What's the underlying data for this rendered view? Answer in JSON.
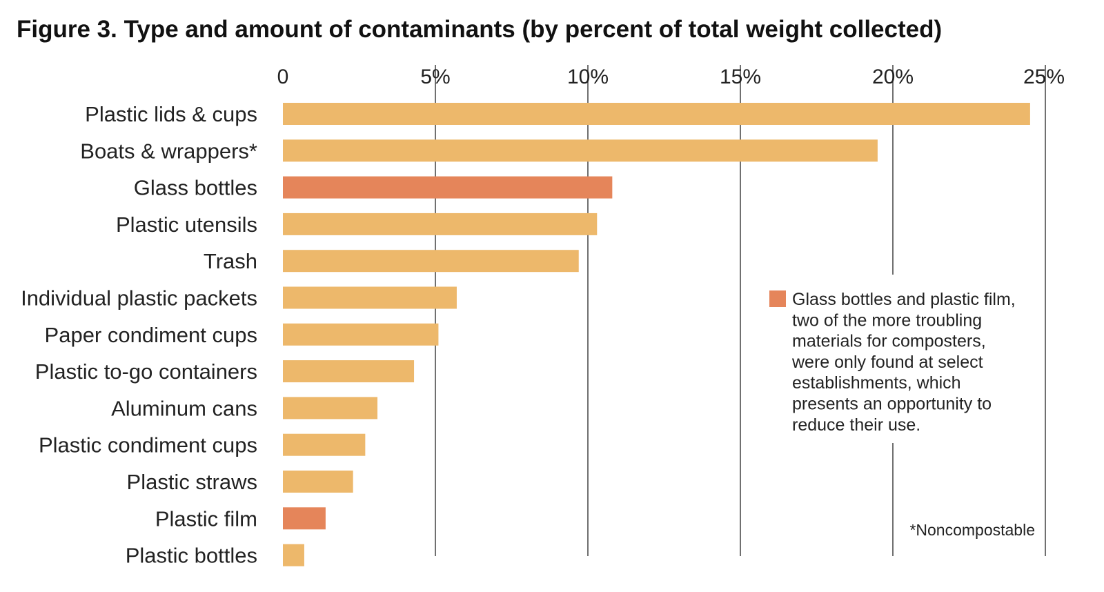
{
  "chart_data": {
    "type": "bar",
    "orientation": "horizontal",
    "title": "Figure 3. Type and amount of contaminants (by percent of total weight collected)",
    "xlabel": "",
    "ylabel": "",
    "xlim": [
      0,
      25
    ],
    "x_ticks": [
      0,
      5,
      10,
      15,
      20,
      25
    ],
    "x_tick_labels": [
      "0",
      "5%",
      "10%",
      "15%",
      "20%",
      "25%"
    ],
    "x_axis_position": "top",
    "grid": true,
    "categories": [
      "Plastic lids & cups",
      "Boats & wrappers*",
      "Glass bottles",
      "Plastic utensils",
      "Trash",
      "Individual plastic packets",
      "Paper condiment cups",
      "Plastic to-go containers",
      "Aluminum cans",
      "Plastic condiment cups",
      "Plastic straws",
      "Plastic film",
      "Plastic bottles"
    ],
    "values": [
      24.5,
      19.5,
      10.8,
      10.3,
      9.7,
      5.7,
      5.1,
      4.3,
      3.1,
      2.7,
      2.3,
      1.4,
      0.7
    ],
    "highlighted": [
      false,
      false,
      true,
      false,
      false,
      false,
      false,
      false,
      false,
      false,
      false,
      true,
      false
    ],
    "colors": {
      "bar": "#EDB86B",
      "highlight": "#E5855A"
    },
    "legend": {
      "position": "right",
      "lines": [
        "Glass bottles and plastic film,",
        "two of the more troubling",
        "materials for composters,",
        "were only found at select",
        "establishments, which",
        "presents an opportunity to",
        "reduce their use."
      ]
    },
    "footnote": "*Noncompostable"
  }
}
